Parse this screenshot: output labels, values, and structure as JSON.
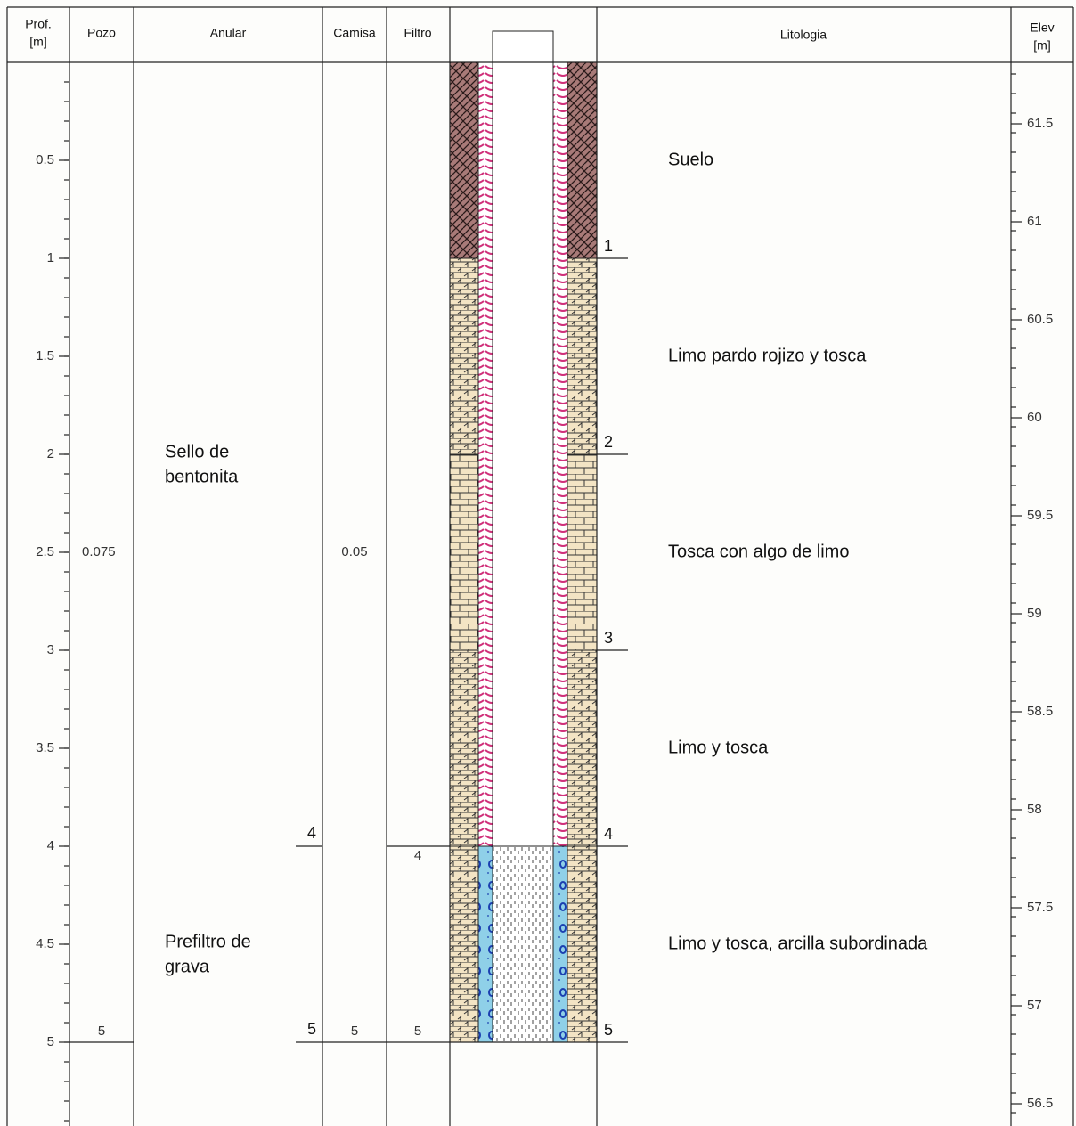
{
  "header": {
    "prof": [
      "Prof.",
      "[m]"
    ],
    "pozo": "Pozo",
    "anular": "Anular",
    "camisa": "Camisa",
    "filtro": "Filtro",
    "litologia": "Litologia",
    "elev": [
      "Elev",
      "[m]"
    ]
  },
  "depth_ticks": [
    "0.5",
    "1",
    "1.5",
    "2",
    "2.5",
    "3",
    "3.5",
    "4",
    "4.5",
    "5"
  ],
  "elev_ticks": [
    "61.5",
    "61",
    "60.5",
    "60",
    "59.5",
    "59",
    "58.5",
    "58",
    "57.5",
    "57",
    "56.5"
  ],
  "pozo": {
    "diameter": "0.075",
    "bottom": "5"
  },
  "anular": [
    {
      "label": [
        "Sello de",
        "bentonita"
      ],
      "bottom": "4"
    },
    {
      "label": [
        "Prefiltro de",
        "grava"
      ],
      "bottom": "5"
    }
  ],
  "camisa": {
    "diameter": "0.05",
    "bottom": "5"
  },
  "filtro": {
    "top": "4",
    "bottom": "5"
  },
  "lithology": [
    {
      "name": "Suelo",
      "bottom": "1"
    },
    {
      "name": "Limo pardo rojizo y tosca",
      "bottom": "2"
    },
    {
      "name": "Tosca con algo de limo",
      "bottom": "3"
    },
    {
      "name": "Limo y tosca",
      "bottom": "4"
    },
    {
      "name": "Limo y tosca, arcilla subordinada",
      "bottom": "5"
    }
  ]
}
